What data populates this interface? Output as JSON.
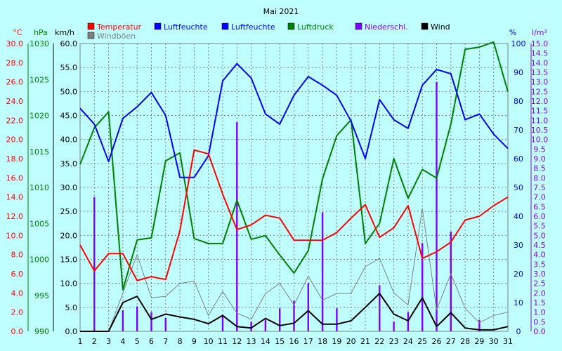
{
  "chart_data": {
    "type": "line",
    "title": "Mai 2021",
    "x": [
      1,
      2,
      3,
      4,
      5,
      6,
      7,
      8,
      9,
      10,
      11,
      12,
      13,
      14,
      15,
      16,
      17,
      18,
      19,
      20,
      21,
      22,
      23,
      24,
      25,
      26,
      27,
      28,
      29,
      30,
      31
    ],
    "axes": {
      "temp": {
        "unit": "°C",
        "range": [
          0,
          30
        ],
        "ticks": [
          "0.0",
          "2.0",
          "4.0",
          "6.0",
          "8.0",
          "10.0",
          "12.0",
          "14.0",
          "16.0",
          "18.0",
          "20.0",
          "22.0",
          "24.0",
          "26.0",
          "28.0",
          "30.0"
        ],
        "color": "#ff0000"
      },
      "pressure": {
        "unit": "hPa",
        "range": [
          990,
          1030
        ],
        "ticks": [
          "990",
          "995",
          "1000",
          "1005",
          "1010",
          "1015",
          "1020",
          "1025",
          "1030"
        ],
        "color": "#008000"
      },
      "wind": {
        "unit": "km/h",
        "range": [
          0,
          60
        ],
        "ticks": [
          "0.0",
          "5.0",
          "10.0",
          "15.0",
          "20.0",
          "25.0",
          "30.0",
          "35.0",
          "40.0",
          "45.0",
          "50.0",
          "55.0",
          "60.0"
        ],
        "color": "#000000"
      },
      "humidity": {
        "unit": "%",
        "range": [
          0,
          100
        ],
        "ticks": [
          "0",
          "10",
          "20",
          "30",
          "40",
          "50",
          "60",
          "70",
          "80",
          "90",
          "100"
        ],
        "color": "#0000ff"
      },
      "precip": {
        "unit": "l/m²",
        "range": [
          0,
          15
        ],
        "ticks": [
          "0.0",
          "0.5",
          "1.0",
          "1.5",
          "2.0",
          "2.5",
          "3.0",
          "3.5",
          "4.0",
          "4.5",
          "5.0",
          "5.5",
          "6.0",
          "6.5",
          "7.0",
          "7.5",
          "8.0",
          "8.5",
          "9.0",
          "9.5",
          "10.0",
          "10.5",
          "11.0",
          "11.5",
          "12.0",
          "12.5",
          "13.0",
          "13.5",
          "14.0",
          "14.5",
          "15.0"
        ],
        "color": "#8000ff"
      }
    },
    "legend": [
      {
        "label": "Temperatur",
        "color": "#ff0000"
      },
      {
        "label": "Luftfeuchte",
        "color": "#0000ff"
      },
      {
        "label": "Luftfeuchte",
        "color": "#0000ff"
      },
      {
        "label": "Luftdruck",
        "color": "#008000"
      },
      {
        "label": "Niederschl.",
        "color": "#8000ff"
      },
      {
        "label": "Wind",
        "color": "#000000"
      },
      {
        "label": "Windböen",
        "color": "#808080"
      }
    ],
    "series": [
      {
        "name": "Temperatur",
        "axis": "temp",
        "color": "#ff0000",
        "values": [
          9.0,
          6.3,
          8.1,
          8.1,
          5.3,
          5.7,
          5.4,
          10.5,
          18.9,
          18.5,
          14.3,
          10.6,
          11.1,
          12.1,
          11.8,
          9.5,
          9.5,
          9.5,
          10.3,
          11.8,
          13.2,
          9.8,
          10.8,
          13.1,
          7.6,
          8.3,
          9.3,
          11.6,
          12.0,
          13.1,
          14.0
        ]
      },
      {
        "name": "Luftfeuchte",
        "axis": "humidity",
        "color": "#0000ff",
        "values": [
          77.5,
          72,
          59,
          74,
          78,
          83,
          75,
          53.5,
          53.5,
          61,
          87,
          93,
          88,
          75.5,
          72,
          82,
          88.5,
          85.5,
          82,
          73,
          60,
          80.5,
          73.5,
          70.5,
          85.5,
          91,
          89.5,
          73.5,
          75.5,
          68.5,
          63.5
        ]
      },
      {
        "name": "Luftdruck",
        "axis": "pressure",
        "color": "#008000",
        "values": [
          1013.2,
          1018.3,
          1020.5,
          995.8,
          1002.7,
          1003.0,
          1013.7,
          1014.8,
          1002.9,
          1002.2,
          1002.2,
          1008.2,
          1002.8,
          1003.3,
          1000.6,
          998.1,
          1001.2,
          1011.2,
          1017.2,
          1019.4,
          1002.2,
          1005.0,
          1014.0,
          1008.5,
          1012.5,
          1011.3,
          1018.8,
          1029.2,
          1029.5,
          1030.2,
          1023.3
        ]
      },
      {
        "name": "Wind",
        "axis": "wind",
        "color": "#000000",
        "values": [
          0,
          0,
          0,
          6.0,
          7.3,
          2.5,
          3.6,
          3.0,
          2.5,
          1.6,
          3.3,
          1.0,
          0.7,
          2.7,
          1.2,
          1.7,
          4.3,
          1.5,
          1.5,
          2.2,
          5.0,
          7.9,
          3.6,
          2.2,
          7.0,
          1.0,
          3.9,
          0.7,
          0.3,
          0.3,
          1.0
        ]
      },
      {
        "name": "Windböen",
        "axis": "wind",
        "color": "#808080",
        "values": [
          0,
          0,
          0,
          8.0,
          16.0,
          7.0,
          7.3,
          10.0,
          10.5,
          3.3,
          8.3,
          3.8,
          2.5,
          7.9,
          10.0,
          5.5,
          11.5,
          6.5,
          7.9,
          7.9,
          13.5,
          15.2,
          8.0,
          5.5,
          25.6,
          4.5,
          12.0,
          4.8,
          1.8,
          3.3,
          4.0
        ]
      },
      {
        "name": "Niederschl.",
        "axis": "precip",
        "color": "#8000ff",
        "type": "bar",
        "values": [
          0,
          7.0,
          0,
          1.1,
          1.3,
          1.0,
          0.7,
          0,
          0,
          0,
          0.8,
          10.9,
          0.5,
          0.6,
          1.2,
          1.6,
          2.5,
          6.2,
          1.2,
          0,
          0,
          2.4,
          0.5,
          1.0,
          4.6,
          13.0,
          5.2,
          0,
          0.6,
          0,
          0
        ]
      }
    ],
    "grid": true
  }
}
